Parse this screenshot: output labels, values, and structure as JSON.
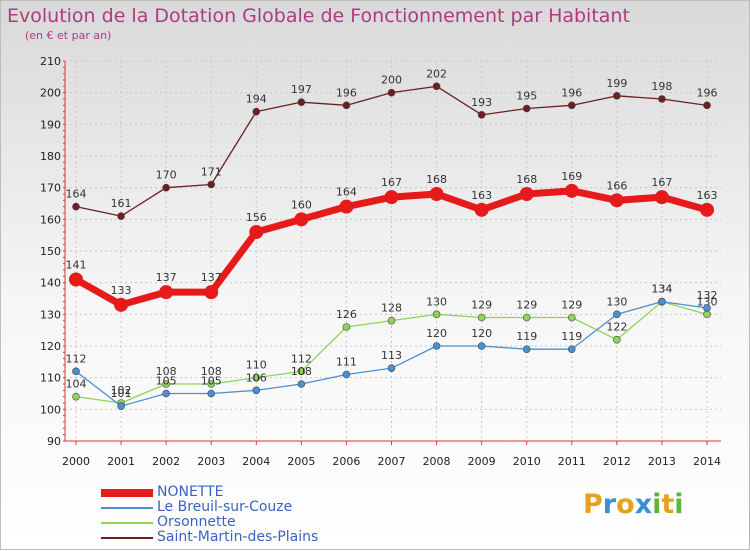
{
  "header": {
    "title": "Evolution de la Dotation Globale de Fonctionnement par Habitant",
    "subtitle": "(en € et par an)"
  },
  "logo": {
    "letters": [
      "P",
      "r",
      "o",
      "x",
      "i",
      "t",
      "i"
    ],
    "colors": [
      "#e8a020",
      "#3a8fd6",
      "#e8a020",
      "#3a8fd6",
      "#5cb83a",
      "#e8a020",
      "#5cb83a"
    ]
  },
  "chart_data": {
    "type": "line",
    "x": [
      "2000",
      "2001",
      "2002",
      "2003",
      "2004",
      "2005",
      "2006",
      "2007",
      "2008",
      "2009",
      "2010",
      "2011",
      "2012",
      "2013",
      "2014"
    ],
    "ylim": [
      90,
      210
    ],
    "yticks": [
      90,
      100,
      110,
      120,
      130,
      140,
      150,
      160,
      170,
      180,
      190,
      200,
      210
    ],
    "grid": true,
    "legend_position": "bottom",
    "series": [
      {
        "name": "Saint-Martin-des-Plains",
        "color": "#6e1f22",
        "values": [
          164,
          161,
          170,
          171,
          194,
          197,
          196,
          200,
          202,
          193,
          195,
          196,
          199,
          198,
          196
        ]
      },
      {
        "name": "Orsonnette",
        "color": "#8fd456",
        "values": [
          104,
          102,
          108,
          108,
          110,
          112,
          126,
          128,
          130,
          129,
          129,
          129,
          122,
          134,
          130
        ]
      },
      {
        "name": "Le Breuil-sur-Couze",
        "color": "#4a90d0",
        "values": [
          112,
          101,
          105,
          105,
          106,
          108,
          111,
          113,
          120,
          120,
          119,
          119,
          130,
          134,
          132
        ]
      },
      {
        "name": "NONETTE",
        "color": "#e61a1a",
        "values": [
          141,
          133,
          137,
          137,
          156,
          160,
          164,
          167,
          168,
          163,
          168,
          169,
          166,
          167,
          163
        ]
      }
    ],
    "legend_order": [
      "NONETTE",
      "Le Breuil-sur-Couze",
      "Orsonnette",
      "Saint-Martin-des-Plains"
    ]
  }
}
